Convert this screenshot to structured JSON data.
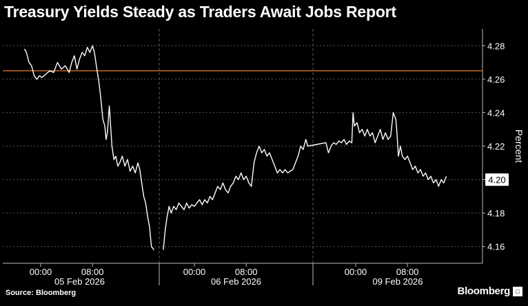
{
  "title": "Treasury Yields Steady as Traders Await Jobs Report",
  "source": "Source: Bloomberg",
  "brand": "Bloomberg",
  "colors": {
    "background": "#000000",
    "line": "#ffffff",
    "reference_line": "#e8782a",
    "grid": "#5a5a5a",
    "axis_text": "#ffffff"
  },
  "chart_data": {
    "type": "line",
    "title": "Treasury Yields Steady as Traders Await Jobs Report",
    "ylabel": "Percent",
    "ylim": [
      4.15,
      4.29
    ],
    "yticks": [
      4.16,
      4.18,
      4.2,
      4.22,
      4.24,
      4.26,
      4.28
    ],
    "ytick_labels": [
      "4.16",
      "4.18",
      "4.20",
      "4.22",
      "4.24",
      "4.26",
      "4.28"
    ],
    "y_axis_position": "right",
    "x_units": "hours into each trading session shown",
    "sessions": [
      "05 Feb 2026",
      "06 Feb 2026",
      "09 Feb 2026"
    ],
    "session_length_hours": 17.5,
    "xticks": [
      {
        "session": 0,
        "hour": 0,
        "label": "00:00"
      },
      {
        "session": 0,
        "hour": 8,
        "label": "08:00"
      },
      {
        "session": 1,
        "hour": 0,
        "label": "00:00"
      },
      {
        "session": 1,
        "hour": 8,
        "label": "08:00"
      },
      {
        "session": 2,
        "hour": 0,
        "label": "00:00"
      },
      {
        "session": 2,
        "hour": 8,
        "label": "08:00"
      }
    ],
    "last_value_label": "4.20",
    "reference_line": {
      "value": 4.265
    },
    "grid": true,
    "series": [
      {
        "values": [
          [
            0,
            -2.5,
            4.278
          ],
          [
            0,
            -2.2,
            4.276
          ],
          [
            0,
            -1.8,
            4.27
          ],
          [
            0,
            -1.4,
            4.268
          ],
          [
            0,
            -1.0,
            4.262
          ],
          [
            0,
            -0.6,
            4.26
          ],
          [
            0,
            -0.2,
            4.262
          ],
          [
            0,
            0.2,
            4.261
          ],
          [
            0,
            0.8,
            4.263
          ],
          [
            0,
            1.4,
            4.265
          ],
          [
            0,
            2.0,
            4.264
          ],
          [
            0,
            2.6,
            4.27
          ],
          [
            0,
            3.2,
            4.266
          ],
          [
            0,
            3.8,
            4.268
          ],
          [
            0,
            4.4,
            4.264
          ],
          [
            0,
            4.8,
            4.27
          ],
          [
            0,
            5.2,
            4.274
          ],
          [
            0,
            5.6,
            4.266
          ],
          [
            0,
            6.0,
            4.272
          ],
          [
            0,
            6.4,
            4.276
          ],
          [
            0,
            6.8,
            4.274
          ],
          [
            0,
            7.2,
            4.279
          ],
          [
            0,
            7.6,
            4.276
          ],
          [
            0,
            8.0,
            4.28
          ],
          [
            0,
            8.3,
            4.276
          ],
          [
            0,
            8.6,
            4.268
          ],
          [
            0,
            9.0,
            4.258
          ],
          [
            0,
            9.3,
            4.248
          ],
          [
            0,
            9.6,
            4.236
          ],
          [
            0,
            9.9,
            4.232
          ],
          [
            0,
            10.1,
            4.224
          ],
          [
            0,
            10.3,
            4.228
          ],
          [
            0,
            10.6,
            4.244
          ],
          [
            0,
            10.8,
            4.232
          ],
          [
            0,
            11.0,
            4.22
          ],
          [
            0,
            11.3,
            4.212
          ],
          [
            0,
            11.6,
            4.214
          ],
          [
            0,
            11.9,
            4.208
          ],
          [
            0,
            12.2,
            4.21
          ],
          [
            0,
            12.6,
            4.214
          ],
          [
            0,
            13.0,
            4.208
          ],
          [
            0,
            13.4,
            4.212
          ],
          [
            0,
            13.8,
            4.205
          ],
          [
            0,
            14.2,
            4.208
          ],
          [
            0,
            14.6,
            4.204
          ],
          [
            0,
            15.0,
            4.21
          ],
          [
            0,
            15.3,
            4.206
          ],
          [
            0,
            15.6,
            4.198
          ],
          [
            0,
            15.9,
            4.19
          ],
          [
            0,
            16.2,
            4.186
          ],
          [
            0,
            16.5,
            4.178
          ],
          [
            0,
            16.8,
            4.172
          ],
          [
            0,
            17.1,
            4.16
          ],
          [
            0,
            17.5,
            4.158
          ]
        ]
      },
      {
        "values": [
          [
            1,
            -4.8,
            4.158
          ],
          [
            1,
            -4.5,
            4.17
          ],
          [
            1,
            -4.2,
            4.178
          ],
          [
            1,
            -3.9,
            4.184
          ],
          [
            1,
            -3.6,
            4.18
          ],
          [
            1,
            -3.2,
            4.184
          ],
          [
            1,
            -2.8,
            4.182
          ],
          [
            1,
            -2.4,
            4.186
          ],
          [
            1,
            -2.0,
            4.184
          ],
          [
            1,
            -1.6,
            4.182
          ],
          [
            1,
            -1.2,
            4.186
          ],
          [
            1,
            -0.8,
            4.183
          ],
          [
            1,
            -0.4,
            4.185
          ],
          [
            1,
            0.0,
            4.184
          ],
          [
            1,
            0.4,
            4.186
          ],
          [
            1,
            0.8,
            4.188
          ],
          [
            1,
            1.2,
            4.185
          ],
          [
            1,
            1.6,
            4.188
          ],
          [
            1,
            2.0,
            4.186
          ],
          [
            1,
            2.4,
            4.19
          ],
          [
            1,
            2.8,
            4.188
          ],
          [
            1,
            3.2,
            4.192
          ],
          [
            1,
            3.6,
            4.196
          ],
          [
            1,
            4.0,
            4.194
          ],
          [
            1,
            4.4,
            4.198
          ],
          [
            1,
            4.8,
            4.194
          ],
          [
            1,
            5.2,
            4.192
          ],
          [
            1,
            5.6,
            4.196
          ],
          [
            1,
            6.0,
            4.198
          ],
          [
            1,
            6.4,
            4.202
          ],
          [
            1,
            6.8,
            4.2
          ],
          [
            1,
            7.2,
            4.204
          ],
          [
            1,
            7.6,
            4.2
          ],
          [
            1,
            8.0,
            4.202
          ],
          [
            1,
            8.4,
            4.198
          ],
          [
            1,
            8.8,
            4.196
          ],
          [
            1,
            9.2,
            4.21
          ],
          [
            1,
            9.6,
            4.216
          ],
          [
            1,
            10.0,
            4.22
          ],
          [
            1,
            10.4,
            4.216
          ],
          [
            1,
            10.8,
            4.218
          ],
          [
            1,
            11.2,
            4.214
          ],
          [
            1,
            11.6,
            4.216
          ],
          [
            1,
            12.0,
            4.212
          ],
          [
            1,
            12.4,
            4.208
          ],
          [
            1,
            12.8,
            4.204
          ],
          [
            1,
            13.2,
            4.206
          ],
          [
            1,
            13.6,
            4.204
          ],
          [
            1,
            14.0,
            4.206
          ],
          [
            1,
            14.4,
            4.204
          ],
          [
            1,
            14.8,
            4.205
          ],
          [
            1,
            15.2,
            4.206
          ]
        ]
      },
      {
        "values": [
          [
            1,
            15.2,
            4.206
          ],
          [
            1,
            15.6,
            4.21
          ],
          [
            1,
            16.0,
            4.214
          ],
          [
            1,
            16.4,
            4.22
          ],
          [
            1,
            16.8,
            4.218
          ],
          [
            1,
            17.2,
            4.224
          ],
          [
            1,
            17.5,
            4.22
          ],
          [
            2,
            -4.6,
            4.222
          ],
          [
            2,
            -4.2,
            4.216
          ],
          [
            2,
            -3.8,
            4.22
          ],
          [
            2,
            -3.4,
            4.222
          ],
          [
            2,
            -3.0,
            4.221
          ],
          [
            2,
            -2.6,
            4.223
          ],
          [
            2,
            -2.2,
            4.222
          ],
          [
            2,
            -1.8,
            4.224
          ],
          [
            2,
            -1.4,
            4.221
          ],
          [
            2,
            -1.0,
            4.223
          ],
          [
            2,
            -0.6,
            4.222
          ],
          [
            2,
            -0.4,
            4.24
          ],
          [
            2,
            -0.2,
            4.232
          ],
          [
            2,
            0.2,
            4.234
          ],
          [
            2,
            0.6,
            4.228
          ],
          [
            2,
            1.0,
            4.23
          ],
          [
            2,
            1.4,
            4.226
          ],
          [
            2,
            1.8,
            4.23
          ],
          [
            2,
            2.2,
            4.226
          ],
          [
            2,
            2.6,
            4.228
          ],
          [
            2,
            3.0,
            4.222
          ],
          [
            2,
            3.4,
            4.226
          ],
          [
            2,
            3.8,
            4.23
          ],
          [
            2,
            4.2,
            4.224
          ],
          [
            2,
            4.6,
            4.228
          ],
          [
            2,
            5.0,
            4.224
          ],
          [
            2,
            5.4,
            4.226
          ],
          [
            2,
            5.8,
            4.24
          ],
          [
            2,
            6.2,
            4.236
          ],
          [
            2,
            6.4,
            4.226
          ],
          [
            2,
            6.6,
            4.214
          ],
          [
            2,
            6.9,
            4.22
          ],
          [
            2,
            7.2,
            4.214
          ],
          [
            2,
            7.6,
            4.212
          ],
          [
            2,
            8.0,
            4.214
          ],
          [
            2,
            8.4,
            4.21
          ],
          [
            2,
            8.8,
            4.206
          ],
          [
            2,
            9.2,
            4.208
          ],
          [
            2,
            9.6,
            4.204
          ],
          [
            2,
            10.0,
            4.206
          ],
          [
            2,
            10.4,
            4.202
          ],
          [
            2,
            10.8,
            4.204
          ],
          [
            2,
            11.2,
            4.2
          ],
          [
            2,
            11.6,
            4.202
          ],
          [
            2,
            12.0,
            4.198
          ],
          [
            2,
            12.4,
            4.2
          ],
          [
            2,
            12.8,
            4.196
          ],
          [
            2,
            13.2,
            4.2
          ],
          [
            2,
            13.6,
            4.198
          ],
          [
            2,
            14.0,
            4.202
          ]
        ]
      }
    ]
  }
}
